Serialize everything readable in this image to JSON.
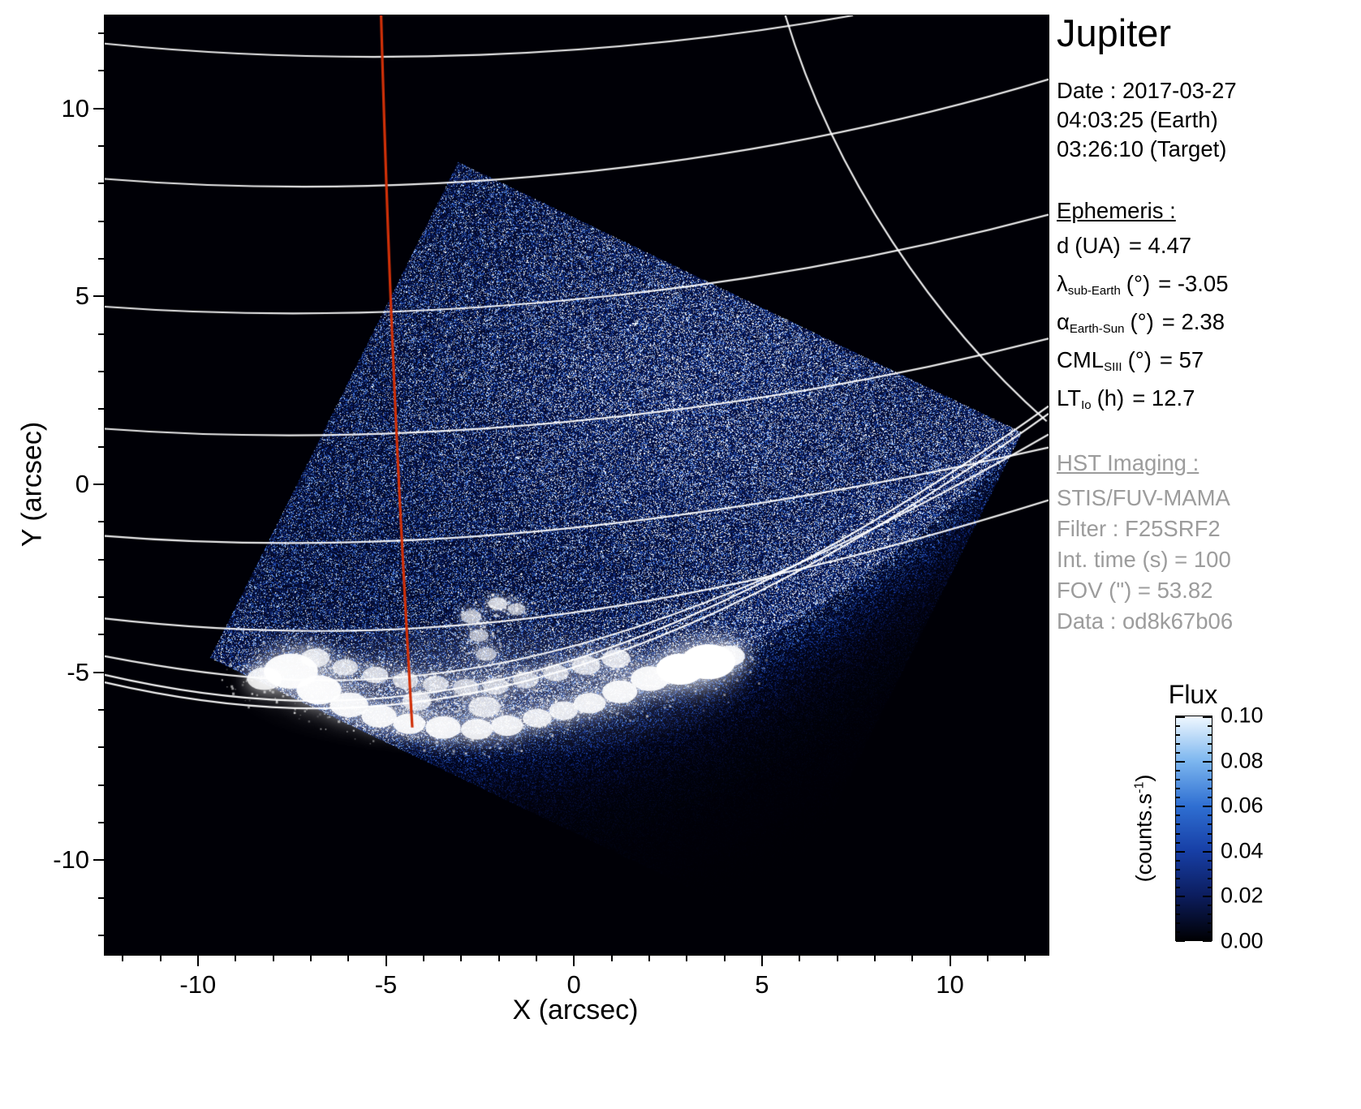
{
  "header": {
    "title": "Jupiter"
  },
  "observation": {
    "date_line": "Date : 2017-03-27",
    "time_earth": "04:03:25 (Earth)",
    "time_target": "03:26:10 (Target)"
  },
  "ephemeris": {
    "header": "Ephemeris :",
    "rows": [
      {
        "sym": "d",
        "sub": "",
        "unit": "(UA)",
        "value": "= 4.47"
      },
      {
        "sym": "λ",
        "sub": "sub-Earth",
        "unit": "(°)",
        "value": "= -3.05"
      },
      {
        "sym": "α",
        "sub": "Earth-Sun",
        "unit": "(°)",
        "value": "= 2.38"
      },
      {
        "sym": "CML",
        "sub": "SIII",
        "unit": "(°)",
        "value": "= 57"
      },
      {
        "sym": "LT",
        "sub": "Io",
        "unit": "(h)",
        "value": "= 12.7"
      }
    ]
  },
  "hst": {
    "header": "HST Imaging :",
    "lines": [
      "STIS/FUV-MAMA",
      "Filter : F25SRF2",
      "Int. time (s) = 100",
      "FOV (\") = 53.82",
      "Data : od8k67b06"
    ]
  },
  "colorbar": {
    "title": "Flux",
    "unit_prefix": "(counts.s",
    "unit_sup": "-1",
    "unit_suffix": ")",
    "tick_labels": [
      "0.10",
      "0.08",
      "0.06",
      "0.04",
      "0.02",
      "0.00"
    ]
  },
  "chart_data": {
    "type": "heatmap",
    "title": "Jupiter",
    "xlabel": "X (arcsec)",
    "ylabel": "Y (arcsec)",
    "xlim": [
      -12.5,
      12.6
    ],
    "ylim": [
      -12.5,
      12.5
    ],
    "xticks": [
      -10,
      -5,
      0,
      5,
      10
    ],
    "xtick_labels": [
      "-10",
      "-5",
      "0",
      "5",
      "10"
    ],
    "yticks": [
      -10,
      -5,
      0,
      5,
      10
    ],
    "ytick_labels": [
      "-10",
      "-5",
      "0",
      "5",
      "10"
    ],
    "flux_range": [
      0.0,
      0.1
    ],
    "flux_ticks": [
      0.0,
      0.02,
      0.04,
      0.06,
      0.08,
      0.1
    ],
    "background_color": "#000000",
    "detector_corners": [
      [
        -3.1,
        8.6
      ],
      [
        11.9,
        1.4
      ],
      [
        5.3,
        -11.8
      ],
      [
        -9.7,
        -4.6
      ]
    ],
    "limb": {
      "a": -6.7,
      "b": 0.03,
      "c": 4.3
    },
    "graticule": {
      "parallels": [
        [
          -12.5,
          11.75,
          -6,
          11.1,
          1,
          11.35,
          7.4,
          12.5
        ],
        [
          -12.5,
          8.15,
          -5,
          7.55,
          4,
          8.2,
          12.6,
          10.8
        ],
        [
          -12.5,
          4.75,
          -5,
          4.2,
          4,
          4.9,
          12.6,
          7.2
        ],
        [
          -12.5,
          1.5,
          -5,
          0.95,
          4,
          1.7,
          12.6,
          3.9
        ],
        [
          -12.5,
          -1.35,
          -5,
          -1.95,
          3,
          -1.15,
          12.6,
          1.0
        ],
        [
          -12.5,
          -3.55,
          -5,
          -4.4,
          2,
          -3.7,
          12.6,
          -0.4
        ],
        [
          -12.5,
          -4.55,
          -6,
          -5.8,
          0,
          -5.9,
          12.6,
          1.35
        ]
      ],
      "meridians": [
        [
          5.6,
          12.5,
          6.9,
          8.2,
          9.6,
          4.3,
          12.55,
          1.7
        ]
      ],
      "limb_curve": [
        -12.5,
        -5.05,
        -6,
        -6.55,
        1,
        -6.2,
        12.6,
        2.1
      ]
    },
    "red_meridian": [
      -5.15,
      12.5,
      -4.9,
      3.5,
      -4.55,
      -2.5,
      -4.32,
      -6.45
    ],
    "red_meridian_color": "#d03008",
    "aurora": {
      "glow": {
        "x": -2.2,
        "y": -5.4,
        "rx": 7.0,
        "ry": 1.9,
        "alpha": 0.22
      },
      "blobs": [
        [
          -8.25,
          -5.15,
          0.55,
          0.85
        ],
        [
          -7.55,
          -4.95,
          0.85,
          0.95
        ],
        [
          -6.8,
          -5.45,
          0.7,
          0.95
        ],
        [
          -6.0,
          -5.85,
          0.6,
          0.9
        ],
        [
          -5.2,
          -6.15,
          0.55,
          0.9
        ],
        [
          -4.4,
          -6.35,
          0.5,
          0.9
        ],
        [
          -3.5,
          -6.45,
          0.55,
          0.9
        ],
        [
          -2.6,
          -6.5,
          0.5,
          0.85
        ],
        [
          -1.8,
          -6.4,
          0.5,
          0.85
        ],
        [
          -1.0,
          -6.2,
          0.45,
          0.8
        ],
        [
          -0.3,
          -6.0,
          0.45,
          0.8
        ],
        [
          0.4,
          -5.8,
          0.5,
          0.85
        ],
        [
          1.2,
          -5.5,
          0.55,
          0.9
        ],
        [
          2.0,
          -5.15,
          0.6,
          0.92
        ],
        [
          2.8,
          -4.9,
          0.75,
          1
        ],
        [
          3.55,
          -4.7,
          0.85,
          1
        ],
        [
          4.1,
          -4.55,
          0.5,
          0.9
        ],
        [
          -6.9,
          -4.6,
          0.45,
          0.75
        ],
        [
          -6.1,
          -4.85,
          0.4,
          0.7
        ],
        [
          -5.3,
          -5.05,
          0.4,
          0.7
        ],
        [
          -4.5,
          -5.2,
          0.4,
          0.68
        ],
        [
          -3.7,
          -5.3,
          0.4,
          0.65
        ],
        [
          -2.9,
          -5.38,
          0.4,
          0.62
        ],
        [
          -2.1,
          -5.35,
          0.4,
          0.6
        ],
        [
          -1.3,
          -5.18,
          0.4,
          0.6
        ],
        [
          -0.5,
          -5.0,
          0.4,
          0.65
        ],
        [
          0.3,
          -4.8,
          0.45,
          0.7
        ],
        [
          1.1,
          -4.62,
          0.45,
          0.75
        ],
        [
          -2.4,
          -5.9,
          0.5,
          0.7
        ],
        [
          -4.2,
          -5.75,
          0.45,
          0.7
        ],
        [
          -2.75,
          -3.5,
          0.32,
          0.6
        ],
        [
          -2.55,
          -4.0,
          0.3,
          0.55
        ],
        [
          -2.35,
          -4.5,
          0.32,
          0.55
        ],
        [
          -2.05,
          -3.15,
          0.3,
          0.7
        ],
        [
          -1.55,
          -3.3,
          0.28,
          0.55
        ]
      ]
    }
  }
}
